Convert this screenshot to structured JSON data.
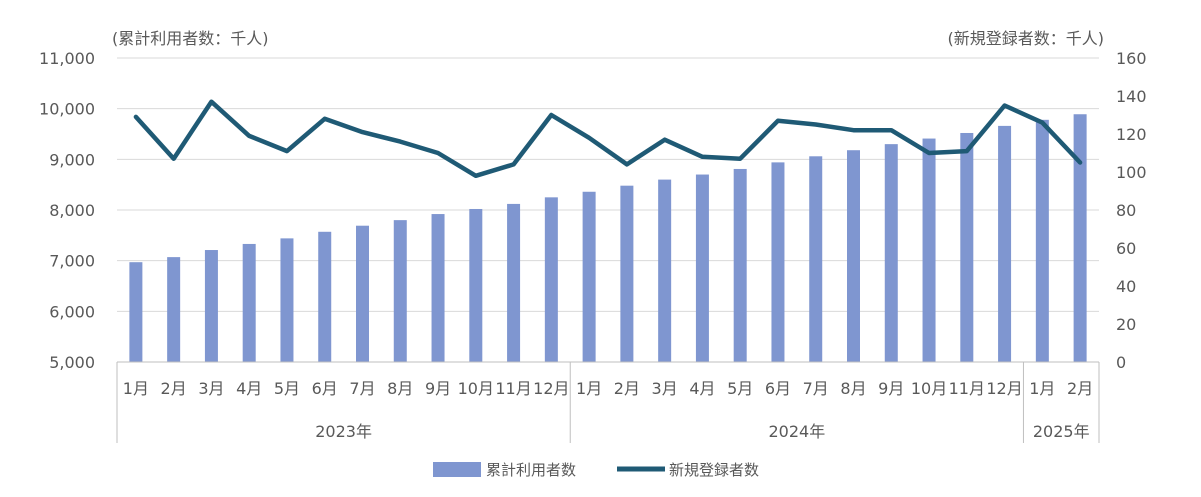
{
  "chart_data": {
    "type": "bar+line",
    "left_axis_unit": "(累計利用者数：千人)",
    "right_axis_unit": "(新規登録者数：千人)",
    "left_ylim": [
      5000,
      11000
    ],
    "left_ticks": [
      "5,000",
      "6,000",
      "7,000",
      "8,000",
      "9,000",
      "10,000",
      "11,000"
    ],
    "right_ylim": [
      0,
      160
    ],
    "right_ticks": [
      "0",
      "20",
      "40",
      "60",
      "80",
      "100",
      "120",
      "140",
      "160"
    ],
    "categories": [
      "1月",
      "2月",
      "3月",
      "4月",
      "5月",
      "6月",
      "7月",
      "8月",
      "9月",
      "10月",
      "11月",
      "12月",
      "1月",
      "2月",
      "3月",
      "4月",
      "5月",
      "6月",
      "7月",
      "8月",
      "9月",
      "10月",
      "11月",
      "12月",
      "1月",
      "2月"
    ],
    "years": [
      {
        "label": "2023年",
        "span": 12
      },
      {
        "label": "2024年",
        "span": 12
      },
      {
        "label": "2025年",
        "span": 2
      }
    ],
    "series": [
      {
        "name": "累計利用者数",
        "type": "bar",
        "axis": "left",
        "color": "#7F96D0",
        "values": [
          6970,
          7070,
          7210,
          7330,
          7440,
          7570,
          7690,
          7800,
          7920,
          8020,
          8120,
          8250,
          8360,
          8480,
          8600,
          8700,
          8810,
          8940,
          9060,
          9180,
          9300,
          9410,
          9520,
          9660,
          9780,
          9890
        ]
      },
      {
        "name": "新規登録者数",
        "type": "line",
        "axis": "right",
        "color": "#1F5A75",
        "values": [
          129,
          107,
          137,
          119,
          111,
          128,
          121,
          116,
          110,
          98,
          104,
          130,
          118,
          104,
          117,
          108,
          107,
          127,
          125,
          122,
          122,
          110,
          111,
          135,
          126,
          105
        ]
      }
    ],
    "grid": true,
    "legend_position": "bottom"
  }
}
